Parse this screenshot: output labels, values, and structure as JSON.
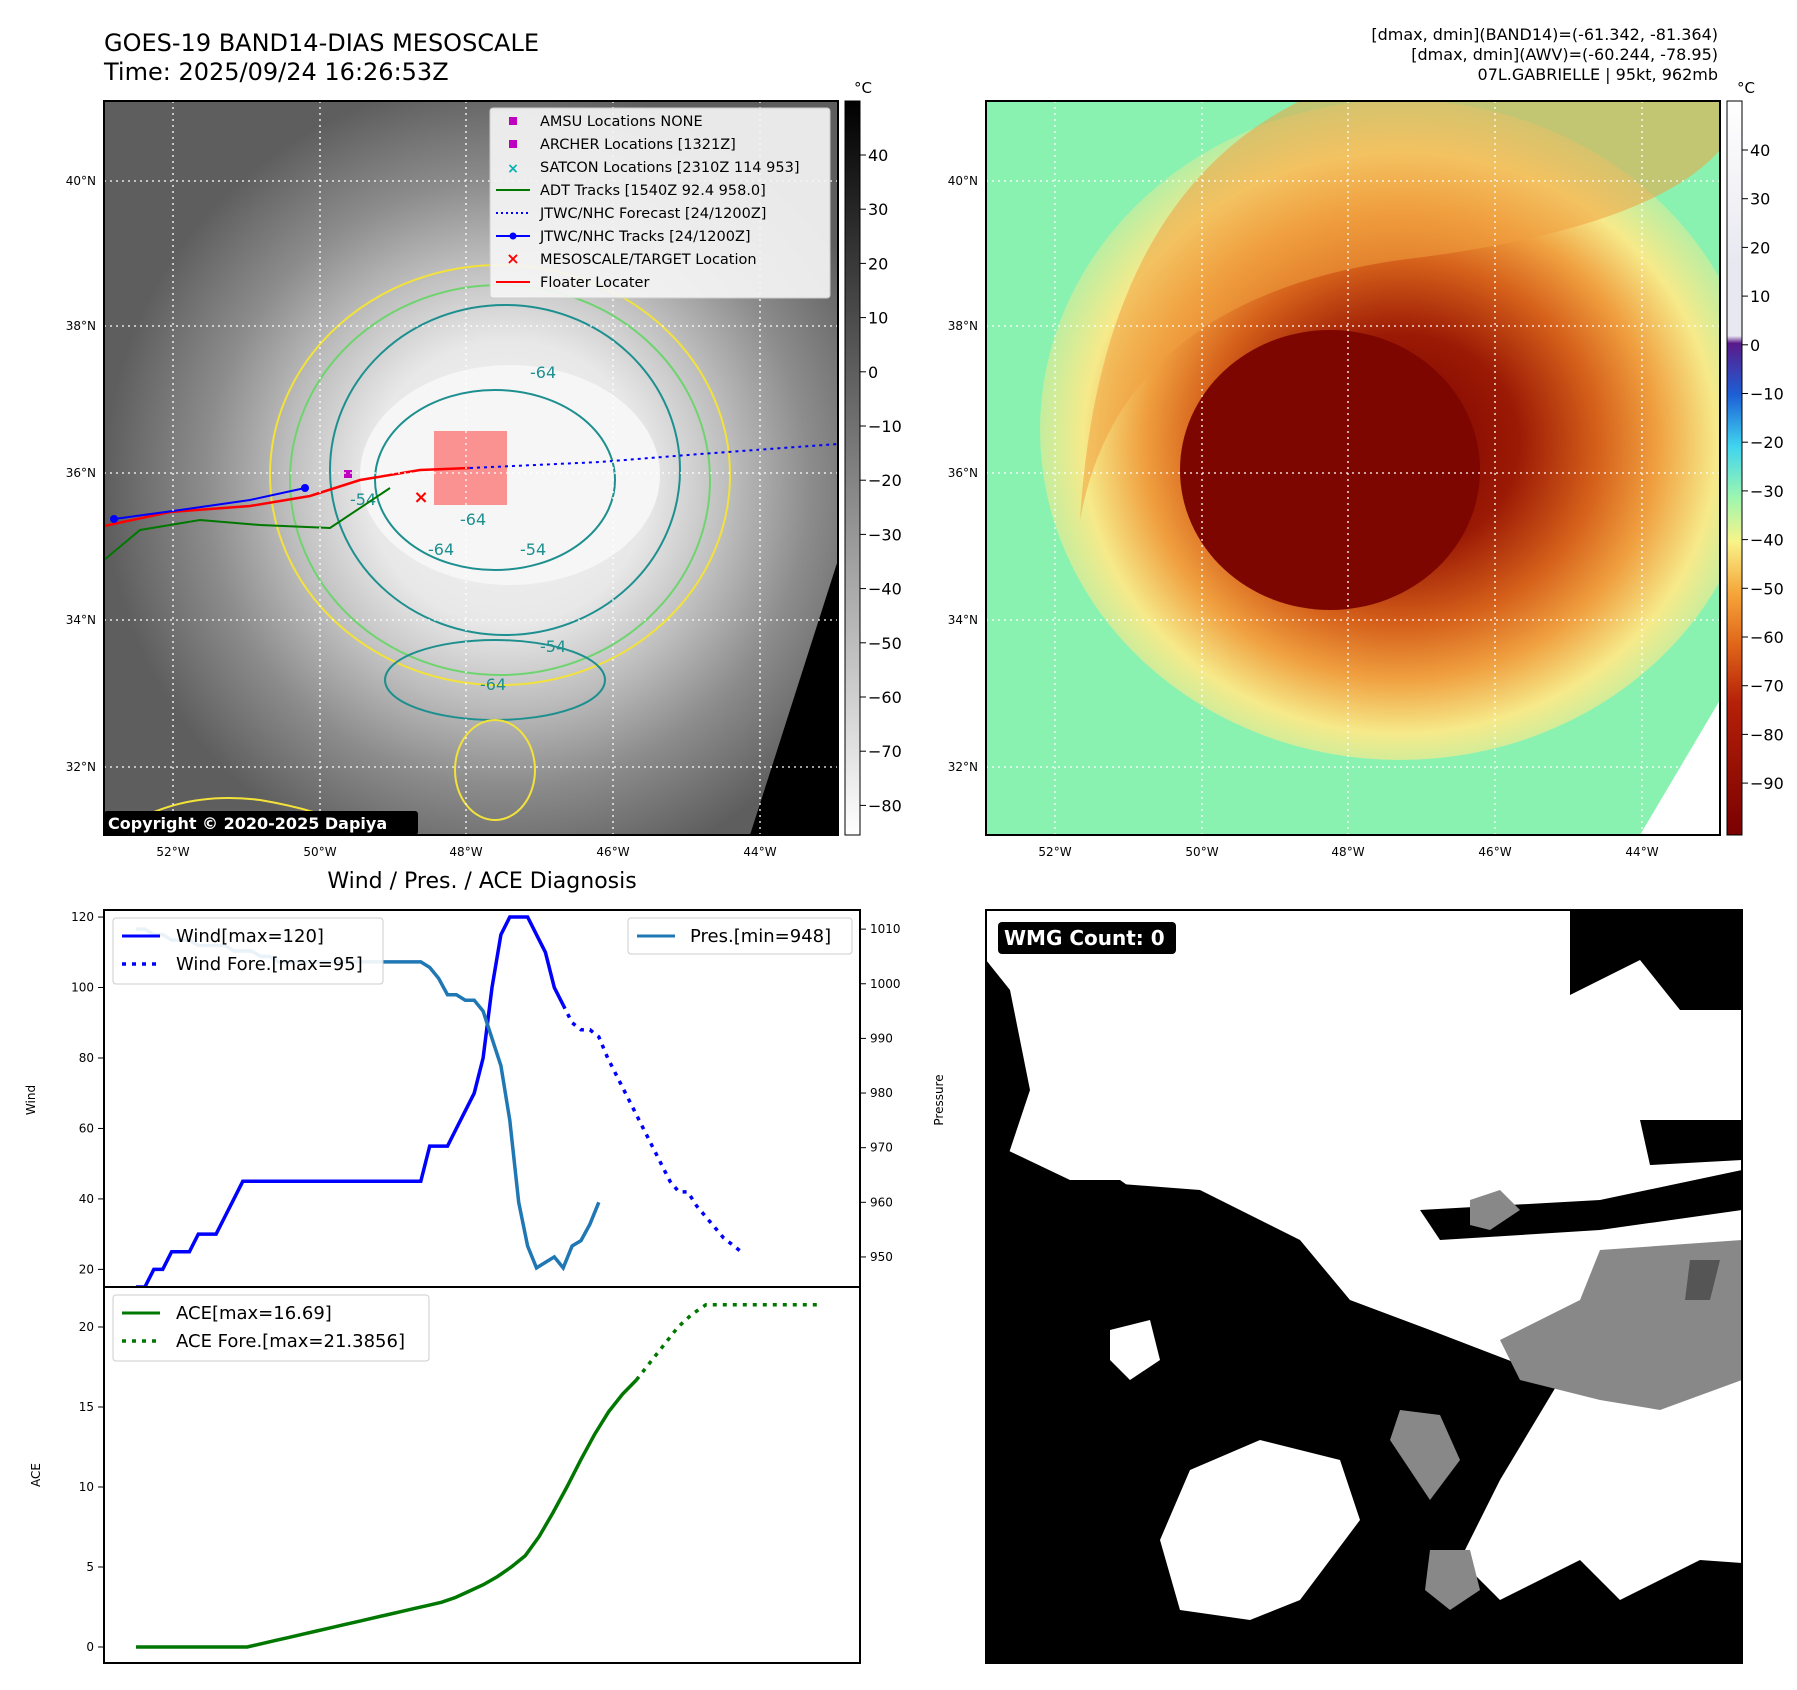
{
  "header": {
    "title_line1": "GOES-19 BAND14-DIAS MESOSCALE",
    "title_line2": "Time: 2025/09/24 16:26:53Z",
    "info_line1": "[dmax, dmin](BAND14)=(-61.342, -81.364)",
    "info_line2": "[dmax, dmin](AWV)=(-60.244, -78.95)",
    "info_line3": "07L.GABRIELLE | 95kt, 962mb"
  },
  "map": {
    "lat_labels": [
      "40°N",
      "38°N",
      "36°N",
      "34°N",
      "32°N"
    ],
    "lon_labels": [
      "52°W",
      "50°W",
      "48°W",
      "46°W",
      "44°W"
    ],
    "copyright": "Copyright © 2020-2025 Dapiya",
    "contour_labels": [
      "-64",
      "-54",
      "-64",
      "-64",
      "-54",
      "-54",
      "-64"
    ],
    "legend": [
      {
        "label": "AMSU Locations NONE",
        "color": "#c000c0",
        "marker": "square"
      },
      {
        "label": "ARCHER Locations [1321Z]",
        "color": "#c000c0",
        "marker": "square"
      },
      {
        "label": "SATCON Locations [2310Z 114 953]",
        "color": "#00b0b0",
        "marker": "x"
      },
      {
        "label": "ADT Tracks [1540Z 92.4 958.0]",
        "color": "#007700",
        "marker": "line"
      },
      {
        "label": "JTWC/NHC Forecast [24/1200Z]",
        "color": "#0000ff",
        "marker": "dotted"
      },
      {
        "label": "JTWC/NHC Tracks [24/1200Z]",
        "color": "#0000ff",
        "marker": "line-dot"
      },
      {
        "label": "MESOSCALE/TARGET Location",
        "color": "#ff0000",
        "marker": "x"
      },
      {
        "label": "Floater Locater",
        "color": "#ff0000",
        "marker": "line"
      }
    ]
  },
  "colorbar_gray": {
    "unit": "°C",
    "ticks": [
      "40",
      "30",
      "20",
      "10",
      "0",
      "−10",
      "−20",
      "−30",
      "−40",
      "−50",
      "−60",
      "−70",
      "−80"
    ]
  },
  "colorbar_color": {
    "unit": "°C",
    "ticks": [
      "40",
      "30",
      "20",
      "10",
      "0",
      "−10",
      "−20",
      "−30",
      "−40",
      "−50",
      "−60",
      "−70",
      "−80",
      "−90"
    ]
  },
  "wmg": {
    "label": "WMG Count: 0"
  },
  "chart_data": [
    {
      "type": "line",
      "title": "Wind / Pres. / ACE Diagnosis",
      "ylabel": "Wind",
      "y2label": "Pressure",
      "ylim": [
        15,
        122
      ],
      "y2lim": [
        944.5,
        1013.5
      ],
      "yticks": [
        20,
        40,
        60,
        80,
        100,
        120
      ],
      "y2ticks": [
        950,
        960,
        970,
        980,
        990,
        1000,
        1010
      ],
      "series": [
        {
          "name": "Wind[max=120]",
          "color": "#0000ff",
          "style": "solid",
          "values": [
            15,
            15,
            20,
            20,
            25,
            25,
            25,
            30,
            30,
            30,
            35,
            40,
            45,
            45,
            45,
            45,
            45,
            45,
            45,
            45,
            45,
            45,
            45,
            45,
            45,
            45,
            45,
            45,
            45,
            45,
            45,
            45,
            45,
            55,
            55,
            55,
            60,
            65,
            70,
            80,
            100,
            115,
            120,
            120,
            120,
            115,
            110,
            100,
            95
          ]
        },
        {
          "name": "Wind Fore.[max=95]",
          "color": "#0000ff",
          "style": "dotted",
          "x_start": 48,
          "values": [
            95,
            90,
            88,
            88,
            86,
            80,
            75,
            70,
            65,
            60,
            55,
            50,
            45,
            42,
            42,
            38,
            35,
            32,
            29,
            27,
            25
          ]
        },
        {
          "name": "Pres.[min=948]",
          "color": "#1f77b4",
          "style": "solid",
          "axis": "right",
          "values": [
            1010,
            1010,
            1009,
            1009,
            1008,
            1008,
            1008,
            1007,
            1007,
            1007,
            1007,
            1006,
            1006,
            1006,
            1005,
            1005,
            1004,
            1004,
            1004,
            1004,
            1004,
            1004,
            1004,
            1004,
            1004,
            1004,
            1004,
            1004,
            1004,
            1004,
            1004,
            1004,
            1004,
            1003,
            1001,
            998,
            998,
            997,
            997,
            995,
            990,
            985,
            975,
            960,
            952,
            948,
            949,
            950,
            948,
            952,
            953,
            956,
            960
          ]
        }
      ]
    },
    {
      "type": "line",
      "ylabel": "ACE",
      "ylim": [
        -1,
        22.5
      ],
      "yticks": [
        0,
        5,
        10,
        15,
        20
      ],
      "series": [
        {
          "name": "ACE[max=16.69]",
          "color": "#007700",
          "style": "solid",
          "values": [
            0,
            0,
            0,
            0,
            0,
            0,
            0,
            0,
            0,
            0.2,
            0.4,
            0.6,
            0.8,
            1.0,
            1.2,
            1.4,
            1.6,
            1.8,
            2.0,
            2.2,
            2.4,
            2.6,
            2.8,
            3.1,
            3.5,
            3.9,
            4.4,
            5.0,
            5.7,
            6.9,
            8.4,
            10.0,
            11.7,
            13.3,
            14.7,
            15.8,
            16.69
          ]
        },
        {
          "name": "ACE Fore.[max=21.3856]",
          "color": "#007700",
          "style": "dotted",
          "x_start": 36,
          "values": [
            16.69,
            17.8,
            18.9,
            20.0,
            20.8,
            21.3856,
            21.3856,
            21.3856,
            21.3856,
            21.3856,
            21.3856,
            21.3856,
            21.3856,
            21.3856
          ]
        }
      ]
    }
  ],
  "legend_wind_position": "upper left",
  "legend_pres_position": "upper right",
  "legend_ace_position": "upper left"
}
